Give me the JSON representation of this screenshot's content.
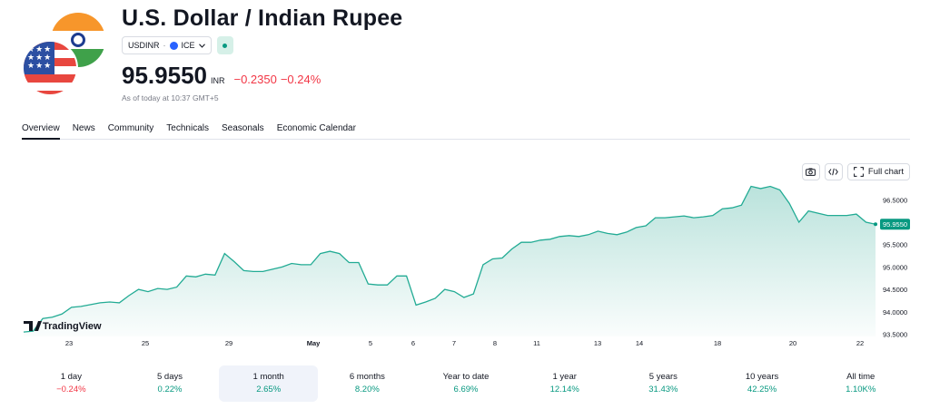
{
  "header": {
    "title": "U.S. Dollar / Indian Rupee",
    "symbol": "USDINR",
    "separator": "·",
    "exchange": "ICE",
    "price": "95.9550",
    "currency": "INR",
    "change": "−0.2350",
    "change_pct": "−0.24%",
    "as_of": "As of today at 10:37 GMT+5",
    "colors": {
      "negative": "#f23645",
      "positive": "#089981",
      "accent": "#131722"
    }
  },
  "tabs": [
    {
      "label": "Overview",
      "active": true
    },
    {
      "label": "News"
    },
    {
      "label": "Community"
    },
    {
      "label": "Technicals"
    },
    {
      "label": "Seasonals"
    },
    {
      "label": "Economic Calendar"
    }
  ],
  "tools": {
    "fullchart_label": "Full chart",
    "snapshot_icon": "camera-icon",
    "embed_icon": "code-icon",
    "fullscreen_icon": "expand-icon"
  },
  "watermark": "TradingView",
  "chart_data": {
    "type": "area",
    "x_ticks": [
      "23",
      "25",
      "29",
      "May",
      "5",
      "6",
      "7",
      "8",
      "11",
      "13",
      "14",
      "18",
      "20",
      "22"
    ],
    "y_ticks": [
      "96.5000",
      "96.0000",
      "95.5000",
      "95.0000",
      "94.5000",
      "94.0000",
      "93.5000"
    ],
    "ylim": [
      93.45,
      96.85
    ],
    "last_value": 95.955,
    "last_label": "95.9550",
    "series": [
      {
        "values": [
          93.55,
          93.57,
          93.85,
          93.88,
          93.95,
          94.1,
          94.12,
          94.16,
          94.2,
          94.22,
          94.2,
          94.36,
          94.5,
          94.45,
          94.52,
          94.5,
          94.55,
          94.8,
          94.78,
          94.84,
          94.82,
          95.3,
          95.12,
          94.92,
          94.9,
          94.9,
          94.95,
          95.0,
          95.08,
          95.05,
          95.05,
          95.3,
          95.35,
          95.3,
          95.1,
          95.1,
          94.62,
          94.6,
          94.6,
          94.8,
          94.8,
          94.15,
          94.22,
          94.3,
          94.5,
          94.45,
          94.32,
          94.4,
          95.05,
          95.18,
          95.2,
          95.4,
          95.55,
          95.55,
          95.6,
          95.62,
          95.68,
          95.7,
          95.68,
          95.72,
          95.8,
          95.75,
          95.72,
          95.78,
          95.88,
          95.92,
          96.1,
          96.1,
          96.12,
          96.14,
          96.1,
          96.12,
          96.15,
          96.3,
          96.32,
          96.38,
          96.8,
          96.75,
          96.8,
          96.72,
          96.42,
          96.0,
          96.25,
          96.2,
          96.15,
          96.15,
          96.15,
          96.18,
          96.0,
          95.955
        ]
      }
    ]
  },
  "periods": [
    {
      "label": "1 day",
      "value": "−0.24%",
      "tone": "neg"
    },
    {
      "label": "5 days",
      "value": "0.22%",
      "tone": "pos"
    },
    {
      "label": "1 month",
      "value": "2.65%",
      "tone": "pos",
      "active": true
    },
    {
      "label": "6 months",
      "value": "8.20%",
      "tone": "pos"
    },
    {
      "label": "Year to date",
      "value": "6.69%",
      "tone": "pos"
    },
    {
      "label": "1 year",
      "value": "12.14%",
      "tone": "pos"
    },
    {
      "label": "5 years",
      "value": "31.43%",
      "tone": "pos"
    },
    {
      "label": "10 years",
      "value": "42.25%",
      "tone": "pos"
    },
    {
      "label": "All time",
      "value": "1.10K%",
      "tone": "pos"
    }
  ]
}
